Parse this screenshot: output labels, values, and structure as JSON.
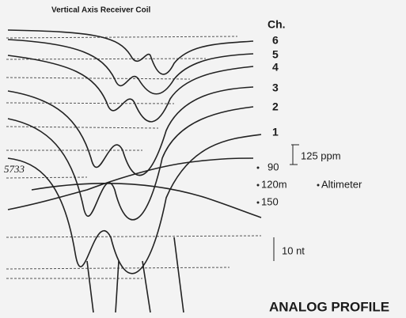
{
  "header": {
    "title": "Vertical Axis Receiver Coil",
    "channel_heading": "Ch."
  },
  "channels": [
    "6",
    "5",
    "4",
    "3",
    "2",
    "1"
  ],
  "scale": {
    "ppm": "125 ppm",
    "altitude_ticks": [
      "90",
      "120m",
      "150"
    ],
    "altimeter": "Altimeter",
    "magnetic": "10 nt"
  },
  "handwritten": "5733",
  "footer": "ANALOG PROFILE"
}
